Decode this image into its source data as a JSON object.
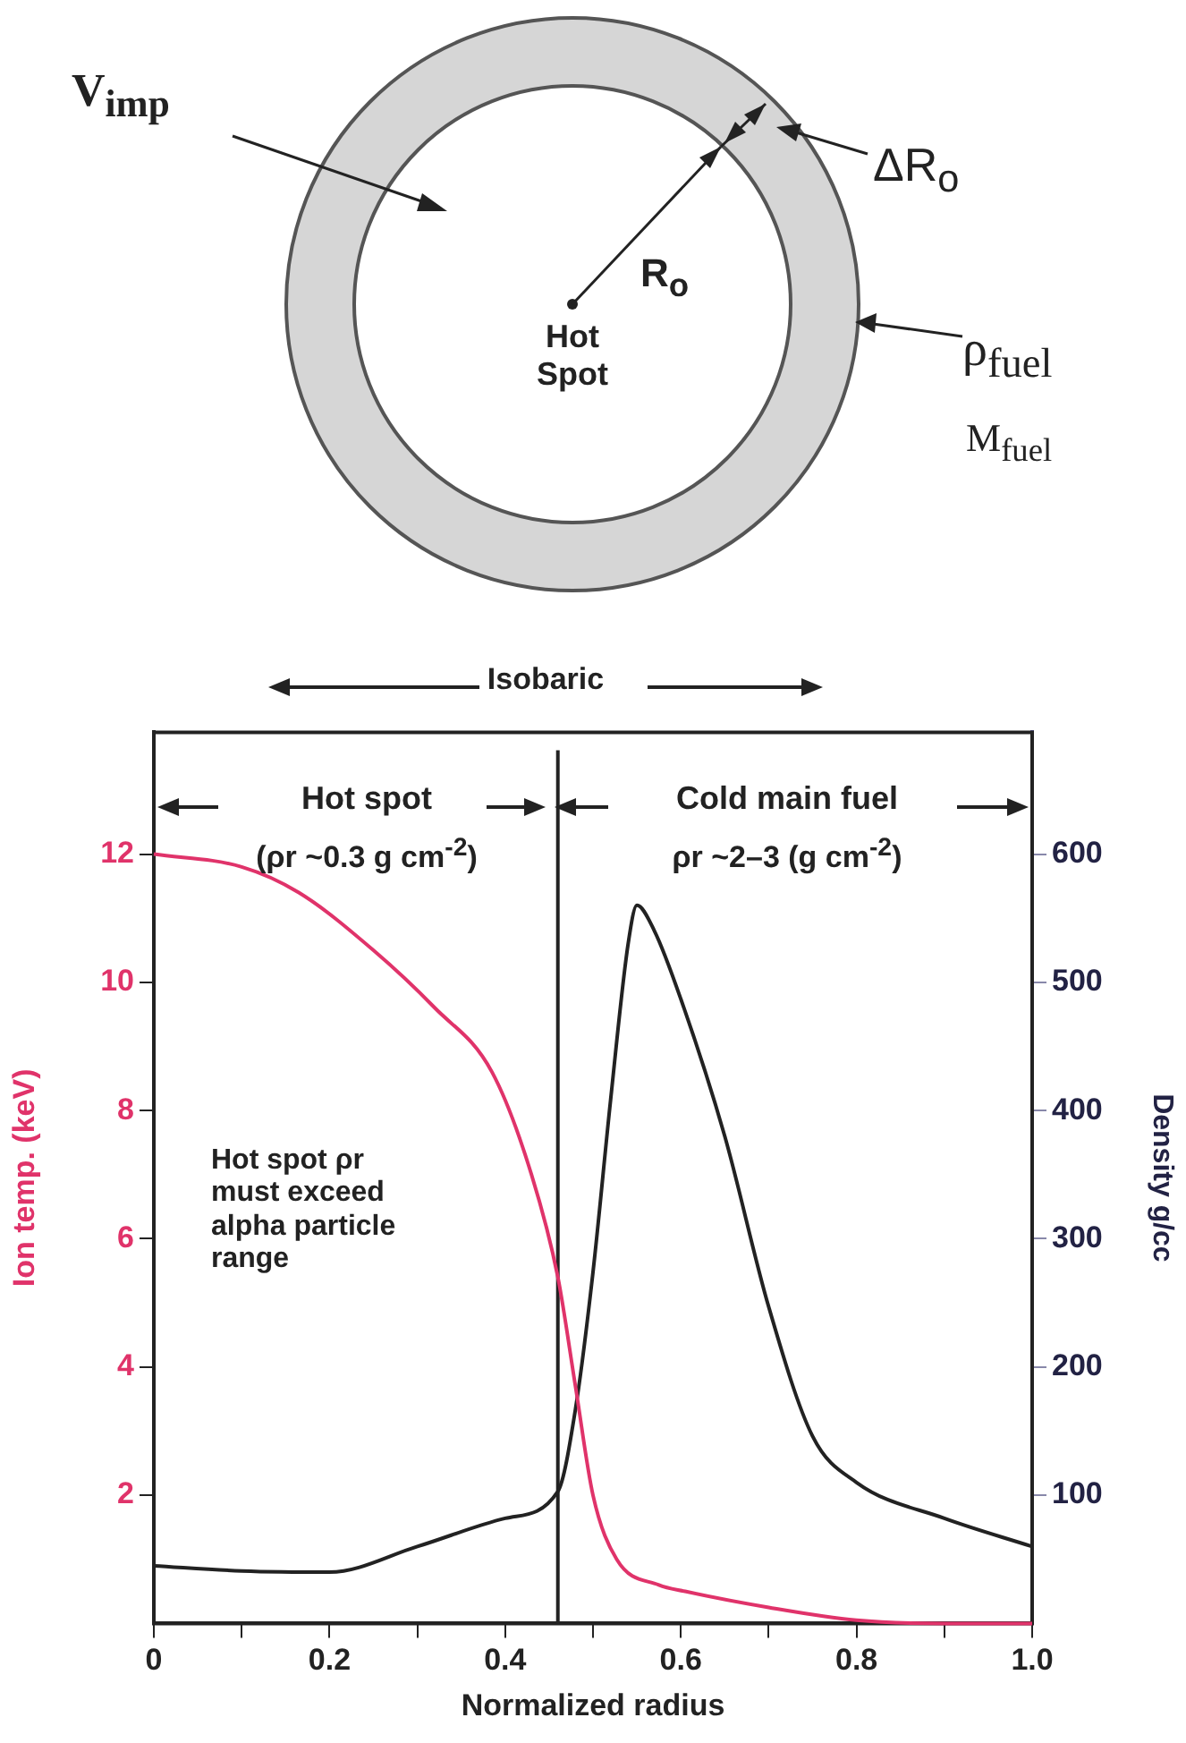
{
  "chart_data": {
    "type": "line",
    "annotations": [
      "V$_{imp}$",
      "ΔR$_{o}$",
      "R$_{o}$",
      "Hot Spot",
      "ρ$_{fuel}$",
      "M$_{fuel}$",
      "Isobaric",
      "Hot spot",
      "(ρr ~0.3 g cm$^{-2}$)",
      "Cold main fuel",
      "ρr ~2–3 (g cm$^{-2}$)",
      "Hot spot ρr must exceed alpha particle range"
    ],
    "xlabel": "Normalized radius",
    "ylabel": "Ion temp. (keV)",
    "y2label": "Density g/cc",
    "series": [
      {
        "color": "#e0336a",
        "x": [
          0,
          0.1,
          0.165,
          0.25,
          0.32,
          0.385,
          0.43,
          0.46,
          0.48,
          0.5,
          0.527,
          0.575,
          0.605,
          0.7,
          0.8,
          0.9,
          1.0
        ],
        "values": [
          12,
          11.8,
          11.4,
          10.5,
          9.6,
          8.6,
          7.0,
          5.4,
          3.7,
          2.0,
          1.0,
          0.6,
          0.5,
          0.25,
          0.05,
          0,
          0
        ]
      },
      {
        "color": "#222222",
        "axis": "y2",
        "x": [
          0,
          0.1,
          0.2,
          0.3,
          0.4,
          0.46,
          0.48,
          0.5,
          0.52,
          0.54,
          0.55,
          0.57,
          0.6,
          0.65,
          0.7,
          0.75,
          0.8,
          0.9,
          1.0
        ],
        "values": [
          45,
          41,
          40,
          60,
          82,
          103,
          167,
          274,
          408,
          530,
          560,
          540,
          487,
          380,
          247,
          146,
          110,
          82,
          60
        ]
      }
    ],
    "xlim": [
      0,
      1
    ],
    "xticks": [
      0,
      {
        "value": 0.1,
        "label": null
      },
      0.2,
      {
        "value": 0.3,
        "label": null
      },
      0.4,
      {
        "value": 0.5,
        "label": null
      },
      0.6,
      {
        "value": 0.7,
        "label": null
      },
      0.8,
      {
        "value": 0.9,
        "label": null
      },
      {
        "value": 1,
        "label": "1.0"
      }
    ],
    "ylim": [
      0,
      13.9
    ],
    "yticks": [
      2,
      4,
      6,
      8,
      10,
      12
    ],
    "y2lim": [
      0,
      695
    ],
    "y2ticks": [
      100,
      200,
      300,
      400,
      500,
      600
    ],
    "ref_lines": [
      {
        "axis": "x",
        "value": 0.46,
        "color": "#222222"
      }
    ],
    "grid": false,
    "legend": false,
    "marker": "none",
    "line_style": "solid"
  }
}
